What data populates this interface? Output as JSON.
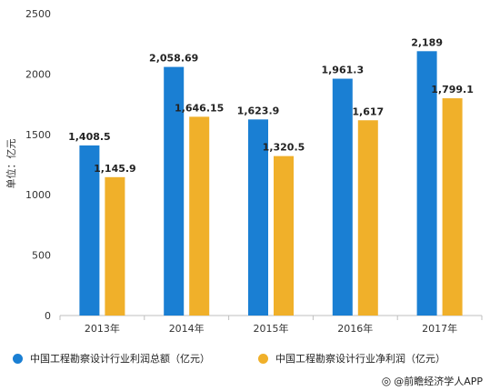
{
  "chart_data": {
    "type": "bar",
    "ylabel": "单位：亿元",
    "xlabel": "",
    "categories": [
      "2013年",
      "2014年",
      "2015年",
      "2016年",
      "2017年"
    ],
    "ylim": [
      0,
      2500
    ],
    "yticks": [
      0,
      500,
      1000,
      1500,
      2000,
      2500
    ],
    "grid": false,
    "legend_position": "bottom",
    "series": [
      {
        "name": "中国工程勘察设计行业利润总额（亿元）",
        "color": "#1a7fd3",
        "values": [
          1408.5,
          2058.69,
          1623.9,
          1961.3,
          2189
        ],
        "labels": [
          "1,408.5",
          "2,058.69",
          "1,623.9",
          "1,961.3",
          "2,189"
        ]
      },
      {
        "name": "中国工程勘察设计行业净利润（亿元）",
        "color": "#f0b02a",
        "values": [
          1145.9,
          1646.15,
          1320.5,
          1617,
          1799.1
        ],
        "labels": [
          "1,145.9",
          "1,646.15",
          "1,320.5",
          "1,617",
          "1,799.1"
        ]
      }
    ]
  },
  "source": {
    "text": "@前瞻经济学人APP",
    "icon": "circle-logo-icon"
  }
}
